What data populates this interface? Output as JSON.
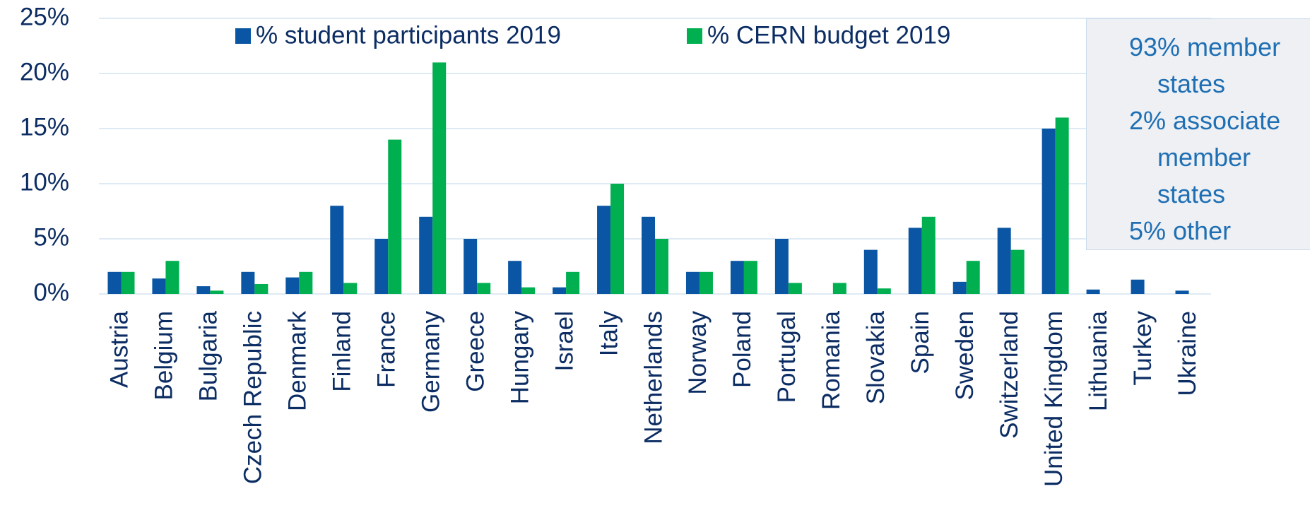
{
  "chart_data": {
    "type": "bar",
    "categories": [
      "Austria",
      "Belgium",
      "Bulgaria",
      "Czech Republic",
      "Denmark",
      "Finland",
      "France",
      "Germany",
      "Greece",
      "Hungary",
      "Israel",
      "Italy",
      "Netherlands",
      "Norway",
      "Poland",
      "Portugal",
      "Romania",
      "Slovakia",
      "Spain",
      "Sweden",
      "Switzerland",
      "United Kingdom",
      "Lithuania",
      "Turkey",
      "Ukraine"
    ],
    "series": [
      {
        "name": "% student participants 2019",
        "color": "#0b56a4",
        "values": [
          2,
          1.4,
          0.7,
          2,
          1.5,
          8,
          5,
          7,
          5,
          3,
          0.6,
          8,
          7,
          2,
          3,
          5,
          0,
          4,
          6,
          1.1,
          6,
          15,
          0.4,
          1.3,
          0.3
        ]
      },
      {
        "name": "% CERN budget 2019",
        "color": "#00b050",
        "values": [
          2,
          3,
          0.3,
          0.9,
          2,
          1,
          14,
          21,
          1,
          0.6,
          2,
          10,
          5,
          2,
          3,
          1,
          1,
          0.5,
          7,
          3,
          4,
          16,
          0,
          0,
          0
        ]
      }
    ],
    "ylim": [
      0,
      25
    ],
    "yticks": [
      {
        "value": 0,
        "label": "0%"
      },
      {
        "value": 5,
        "label": "5%"
      },
      {
        "value": 10,
        "label": "10%"
      },
      {
        "value": 15,
        "label": "15%"
      },
      {
        "value": 20,
        "label": "20%"
      },
      {
        "value": 25,
        "label": "25%"
      }
    ],
    "grid": true,
    "annotations": [
      "93% member states",
      "2% associate member states",
      "5% other"
    ]
  }
}
